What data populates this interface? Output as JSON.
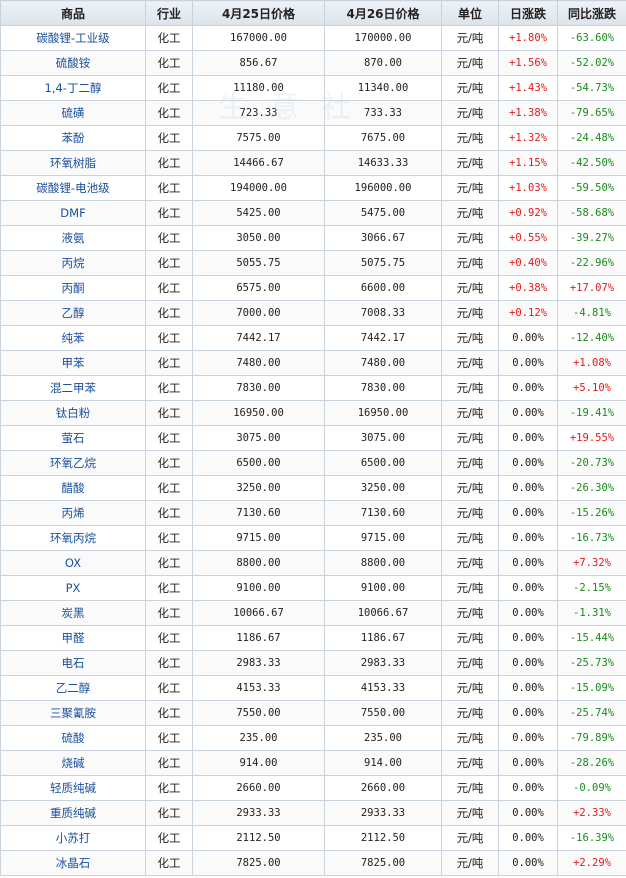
{
  "headers": [
    "商品",
    "行业",
    "4月25日价格",
    "4月26日价格",
    "单位",
    "日涨跌",
    "同比涨跌"
  ],
  "rows": [
    [
      "碳酸锂-工业级",
      "化工",
      "167000.00",
      "170000.00",
      "元/吨",
      "+1.80%",
      "-63.60%"
    ],
    [
      "硫酸铵",
      "化工",
      "856.67",
      "870.00",
      "元/吨",
      "+1.56%",
      "-52.02%"
    ],
    [
      "1,4-丁二醇",
      "化工",
      "11180.00",
      "11340.00",
      "元/吨",
      "+1.43%",
      "-54.73%"
    ],
    [
      "硫磺",
      "化工",
      "723.33",
      "733.33",
      "元/吨",
      "+1.38%",
      "-79.65%"
    ],
    [
      "苯酚",
      "化工",
      "7575.00",
      "7675.00",
      "元/吨",
      "+1.32%",
      "-24.48%"
    ],
    [
      "环氧树脂",
      "化工",
      "14466.67",
      "14633.33",
      "元/吨",
      "+1.15%",
      "-42.50%"
    ],
    [
      "碳酸锂-电池级",
      "化工",
      "194000.00",
      "196000.00",
      "元/吨",
      "+1.03%",
      "-59.50%"
    ],
    [
      "DMF",
      "化工",
      "5425.00",
      "5475.00",
      "元/吨",
      "+0.92%",
      "-58.68%"
    ],
    [
      "液氨",
      "化工",
      "3050.00",
      "3066.67",
      "元/吨",
      "+0.55%",
      "-39.27%"
    ],
    [
      "丙烷",
      "化工",
      "5055.75",
      "5075.75",
      "元/吨",
      "+0.40%",
      "-22.96%"
    ],
    [
      "丙酮",
      "化工",
      "6575.00",
      "6600.00",
      "元/吨",
      "+0.38%",
      "+17.07%"
    ],
    [
      "乙醇",
      "化工",
      "7000.00",
      "7008.33",
      "元/吨",
      "+0.12%",
      "-4.81%"
    ],
    [
      "纯苯",
      "化工",
      "7442.17",
      "7442.17",
      "元/吨",
      "0.00%",
      "-12.40%"
    ],
    [
      "甲苯",
      "化工",
      "7480.00",
      "7480.00",
      "元/吨",
      "0.00%",
      "+1.08%"
    ],
    [
      "混二甲苯",
      "化工",
      "7830.00",
      "7830.00",
      "元/吨",
      "0.00%",
      "+5.10%"
    ],
    [
      "钛白粉",
      "化工",
      "16950.00",
      "16950.00",
      "元/吨",
      "0.00%",
      "-19.41%"
    ],
    [
      "萤石",
      "化工",
      "3075.00",
      "3075.00",
      "元/吨",
      "0.00%",
      "+19.55%"
    ],
    [
      "环氧乙烷",
      "化工",
      "6500.00",
      "6500.00",
      "元/吨",
      "0.00%",
      "-20.73%"
    ],
    [
      "醋酸",
      "化工",
      "3250.00",
      "3250.00",
      "元/吨",
      "0.00%",
      "-26.30%"
    ],
    [
      "丙烯",
      "化工",
      "7130.60",
      "7130.60",
      "元/吨",
      "0.00%",
      "-15.26%"
    ],
    [
      "环氧丙烷",
      "化工",
      "9715.00",
      "9715.00",
      "元/吨",
      "0.00%",
      "-16.73%"
    ],
    [
      "OX",
      "化工",
      "8800.00",
      "8800.00",
      "元/吨",
      "0.00%",
      "+7.32%"
    ],
    [
      "PX",
      "化工",
      "9100.00",
      "9100.00",
      "元/吨",
      "0.00%",
      "-2.15%"
    ],
    [
      "炭黑",
      "化工",
      "10066.67",
      "10066.67",
      "元/吨",
      "0.00%",
      "-1.31%"
    ],
    [
      "甲醛",
      "化工",
      "1186.67",
      "1186.67",
      "元/吨",
      "0.00%",
      "-15.44%"
    ],
    [
      "电石",
      "化工",
      "2983.33",
      "2983.33",
      "元/吨",
      "0.00%",
      "-25.73%"
    ],
    [
      "乙二醇",
      "化工",
      "4153.33",
      "4153.33",
      "元/吨",
      "0.00%",
      "-15.09%"
    ],
    [
      "三聚氰胺",
      "化工",
      "7550.00",
      "7550.00",
      "元/吨",
      "0.00%",
      "-25.74%"
    ],
    [
      "硫酸",
      "化工",
      "235.00",
      "235.00",
      "元/吨",
      "0.00%",
      "-79.89%"
    ],
    [
      "烧碱",
      "化工",
      "914.00",
      "914.00",
      "元/吨",
      "0.00%",
      "-28.26%"
    ],
    [
      "轻质纯碱",
      "化工",
      "2660.00",
      "2660.00",
      "元/吨",
      "0.00%",
      "-0.09%"
    ],
    [
      "重质纯碱",
      "化工",
      "2933.33",
      "2933.33",
      "元/吨",
      "0.00%",
      "+2.33%"
    ],
    [
      "小苏打",
      "化工",
      "2112.50",
      "2112.50",
      "元/吨",
      "0.00%",
      "-16.39%"
    ],
    [
      "冰晶石",
      "化工",
      "7825.00",
      "7825.00",
      "元/吨",
      "0.00%",
      "+2.29%"
    ]
  ],
  "watermark": "生 意 社",
  "colors": {
    "up": "#e21a1a",
    "down": "#1a8a1a",
    "link": "#1a4f9c"
  }
}
